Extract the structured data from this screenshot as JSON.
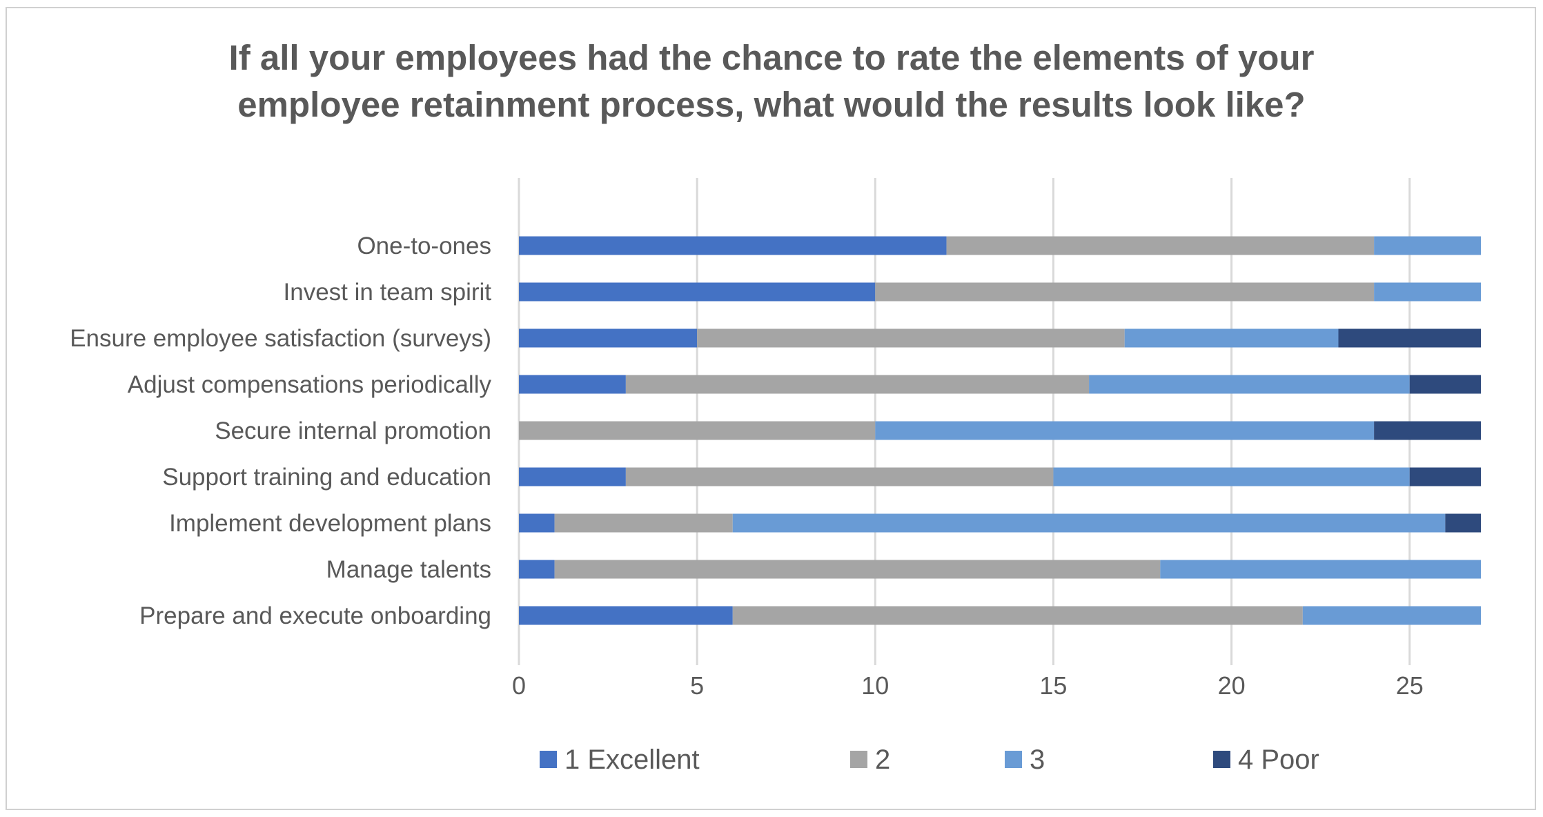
{
  "chart_data": {
    "type": "bar",
    "orientation": "horizontal",
    "stacked": true,
    "title_lines": [
      "If all your employees had the chance to rate the elements of your",
      "employee retainment process, what would the results look like?"
    ],
    "categories": [
      "One-to-ones",
      "Invest in team spirit",
      "Ensure employee satisfaction (surveys)",
      "Adjust compensations periodically",
      "Secure internal promotion",
      "Support training and education",
      "Implement development plans",
      "Manage talents",
      "Prepare and execute onboarding"
    ],
    "series": [
      {
        "name": "1 Excellent",
        "color": "#4472C4",
        "values": [
          12,
          10,
          5,
          3,
          0,
          3,
          1,
          1,
          6
        ]
      },
      {
        "name": "2",
        "color": "#A5A5A5",
        "values": [
          12,
          14,
          12,
          13,
          10,
          12,
          5,
          17,
          16
        ]
      },
      {
        "name": "3",
        "color": "#699BD5",
        "values": [
          3,
          3,
          6,
          9,
          14,
          10,
          20,
          9,
          5
        ]
      },
      {
        "name": "4 Poor",
        "color": "#2E4A7D",
        "values": [
          0,
          0,
          4,
          2,
          3,
          2,
          1,
          0,
          0
        ]
      }
    ],
    "x_ticks": [
      "0",
      "5",
      "10",
      "15",
      "20",
      "25"
    ],
    "xlim": [
      0,
      27
    ],
    "grid": true,
    "legend_position": "bottom"
  }
}
